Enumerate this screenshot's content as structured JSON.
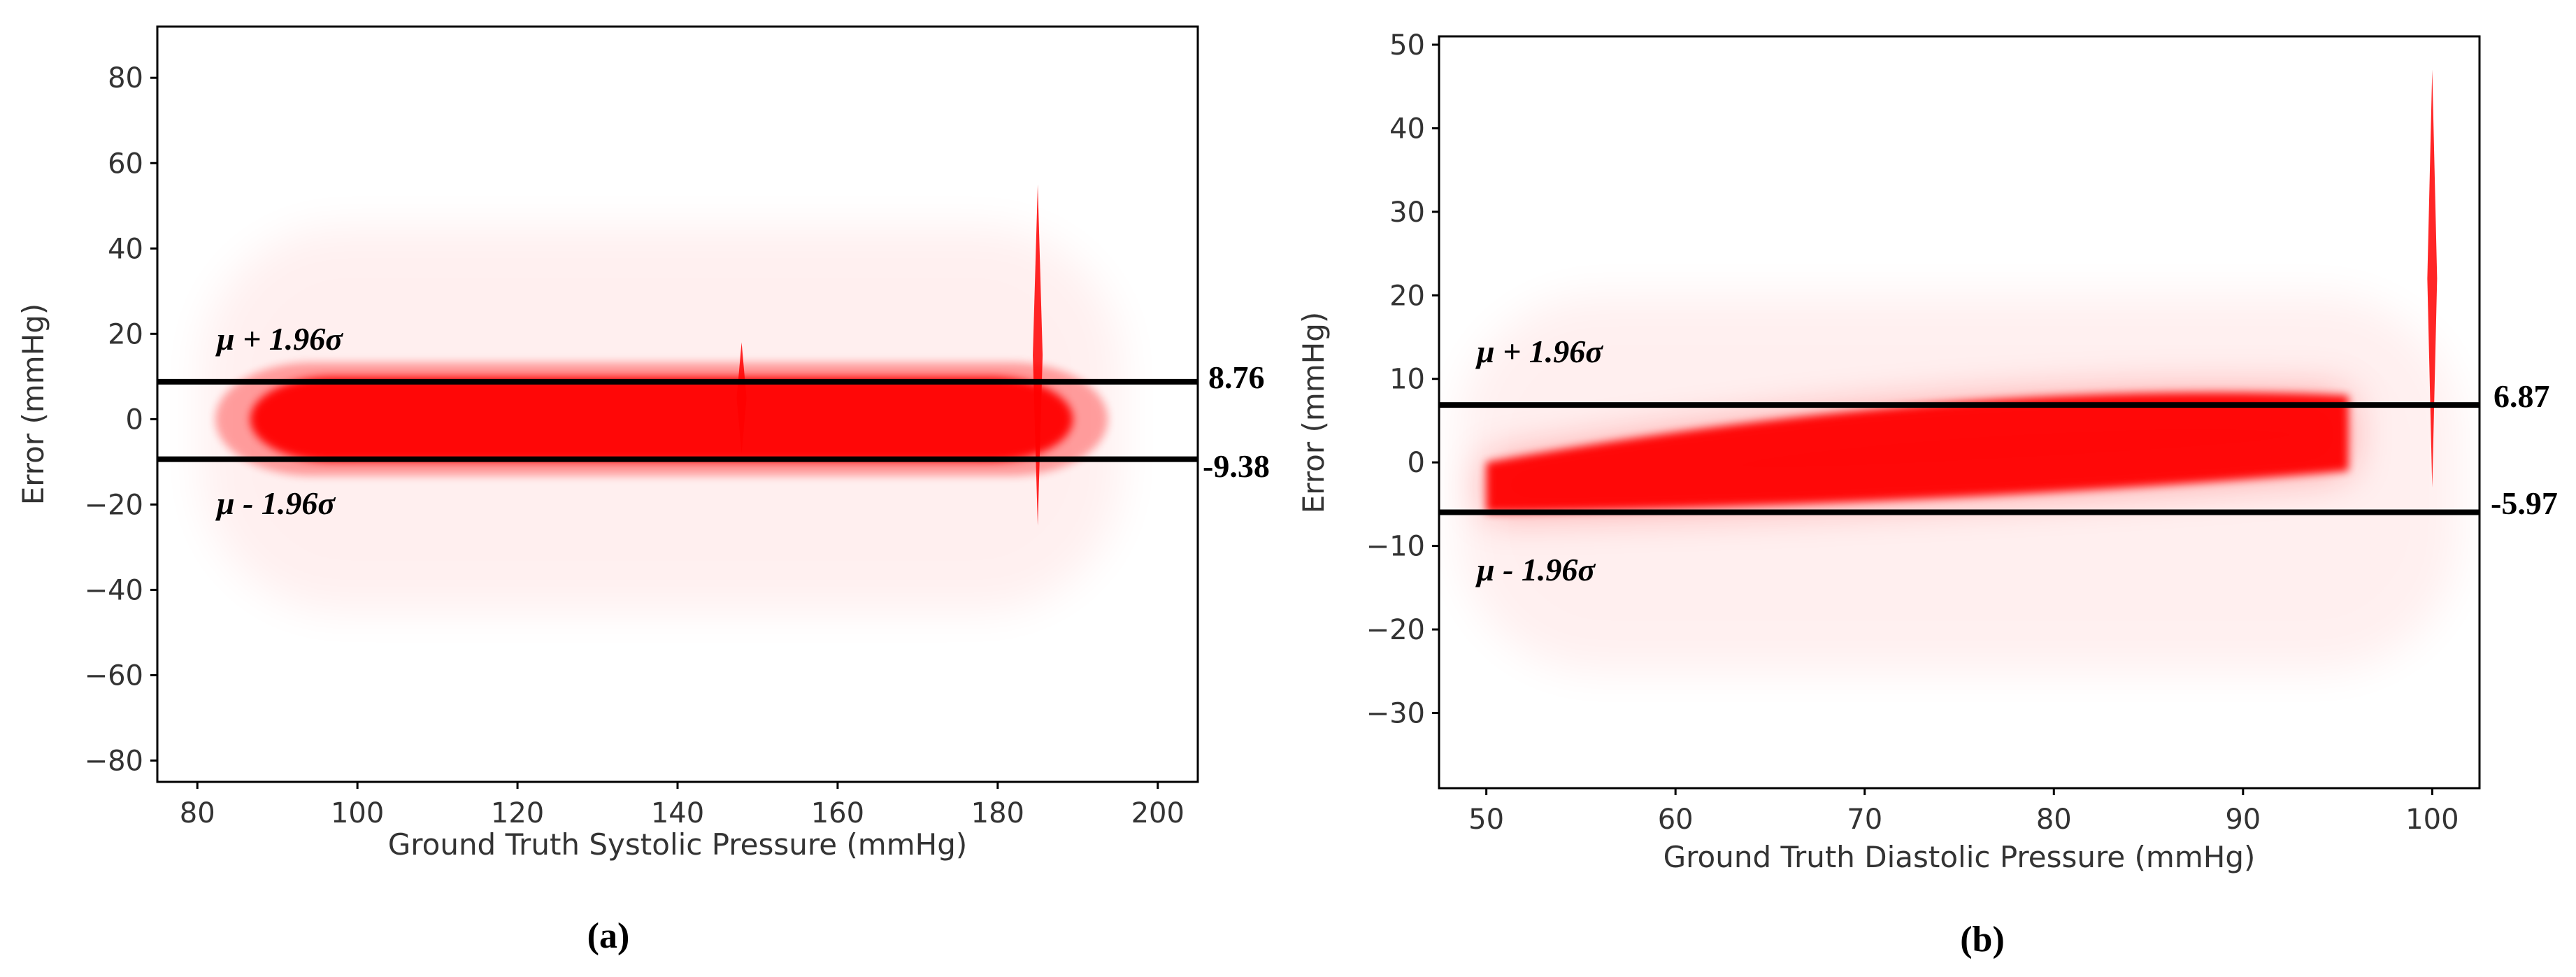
{
  "colors": {
    "points": "#ff0000",
    "limit_line": "#000000",
    "axes": "#000000",
    "text": "#333333"
  },
  "chart_data": [
    {
      "type": "scatter",
      "panel_label": "(a)",
      "title": "",
      "xlabel": "Ground Truth Systolic Pressure (mmHg)",
      "ylabel": "Error (mmHg)",
      "xlim": [
        75,
        205
      ],
      "ylim": [
        -85,
        92
      ],
      "xticks": [
        80,
        100,
        120,
        140,
        160,
        180,
        200
      ],
      "yticks": [
        -80,
        -60,
        -40,
        -20,
        0,
        20,
        40,
        60,
        80
      ],
      "grid": false,
      "point_density": {
        "x_range": [
          84,
          192
        ],
        "core_error_band": [
          -10,
          10
        ],
        "sparse_error_range": [
          -45,
          45
        ],
        "spikes": [
          {
            "x": 148,
            "error_range": [
              -8,
              18
            ]
          },
          {
            "x": 185,
            "error_range": [
              -25,
              55
            ]
          }
        ]
      },
      "limits_of_agreement": [
        {
          "label": "μ + 1.96σ",
          "value_label": "8.76",
          "value": 8.76
        },
        {
          "label": "μ - 1.96σ",
          "value_label": "-9.38",
          "value": -9.38
        }
      ]
    },
    {
      "type": "scatter",
      "panel_label": "(b)",
      "title": "",
      "xlabel": "Ground Truth Diastolic Pressure (mmHg)",
      "ylabel": "Error (mmHg)",
      "xlim": [
        47.5,
        102.5
      ],
      "ylim": [
        -39,
        51
      ],
      "xticks": [
        50,
        60,
        70,
        80,
        90,
        100
      ],
      "yticks": [
        -30,
        -20,
        -10,
        0,
        10,
        20,
        30,
        40,
        50
      ],
      "grid": false,
      "point_density": {
        "x_range": [
          50,
          100
        ],
        "core_error_band_start": [
          -6,
          0
        ],
        "core_error_band_end": [
          -1,
          8
        ],
        "sparse_error_range": [
          -25,
          20
        ],
        "spikes": [
          {
            "x": 100,
            "error_range": [
              -3,
              47
            ]
          }
        ]
      },
      "limits_of_agreement": [
        {
          "label": "μ + 1.96σ",
          "value_label": "6.87",
          "value": 6.87
        },
        {
          "label": "μ - 1.96σ",
          "value_label": "-5.97",
          "value": -5.97
        }
      ]
    }
  ]
}
